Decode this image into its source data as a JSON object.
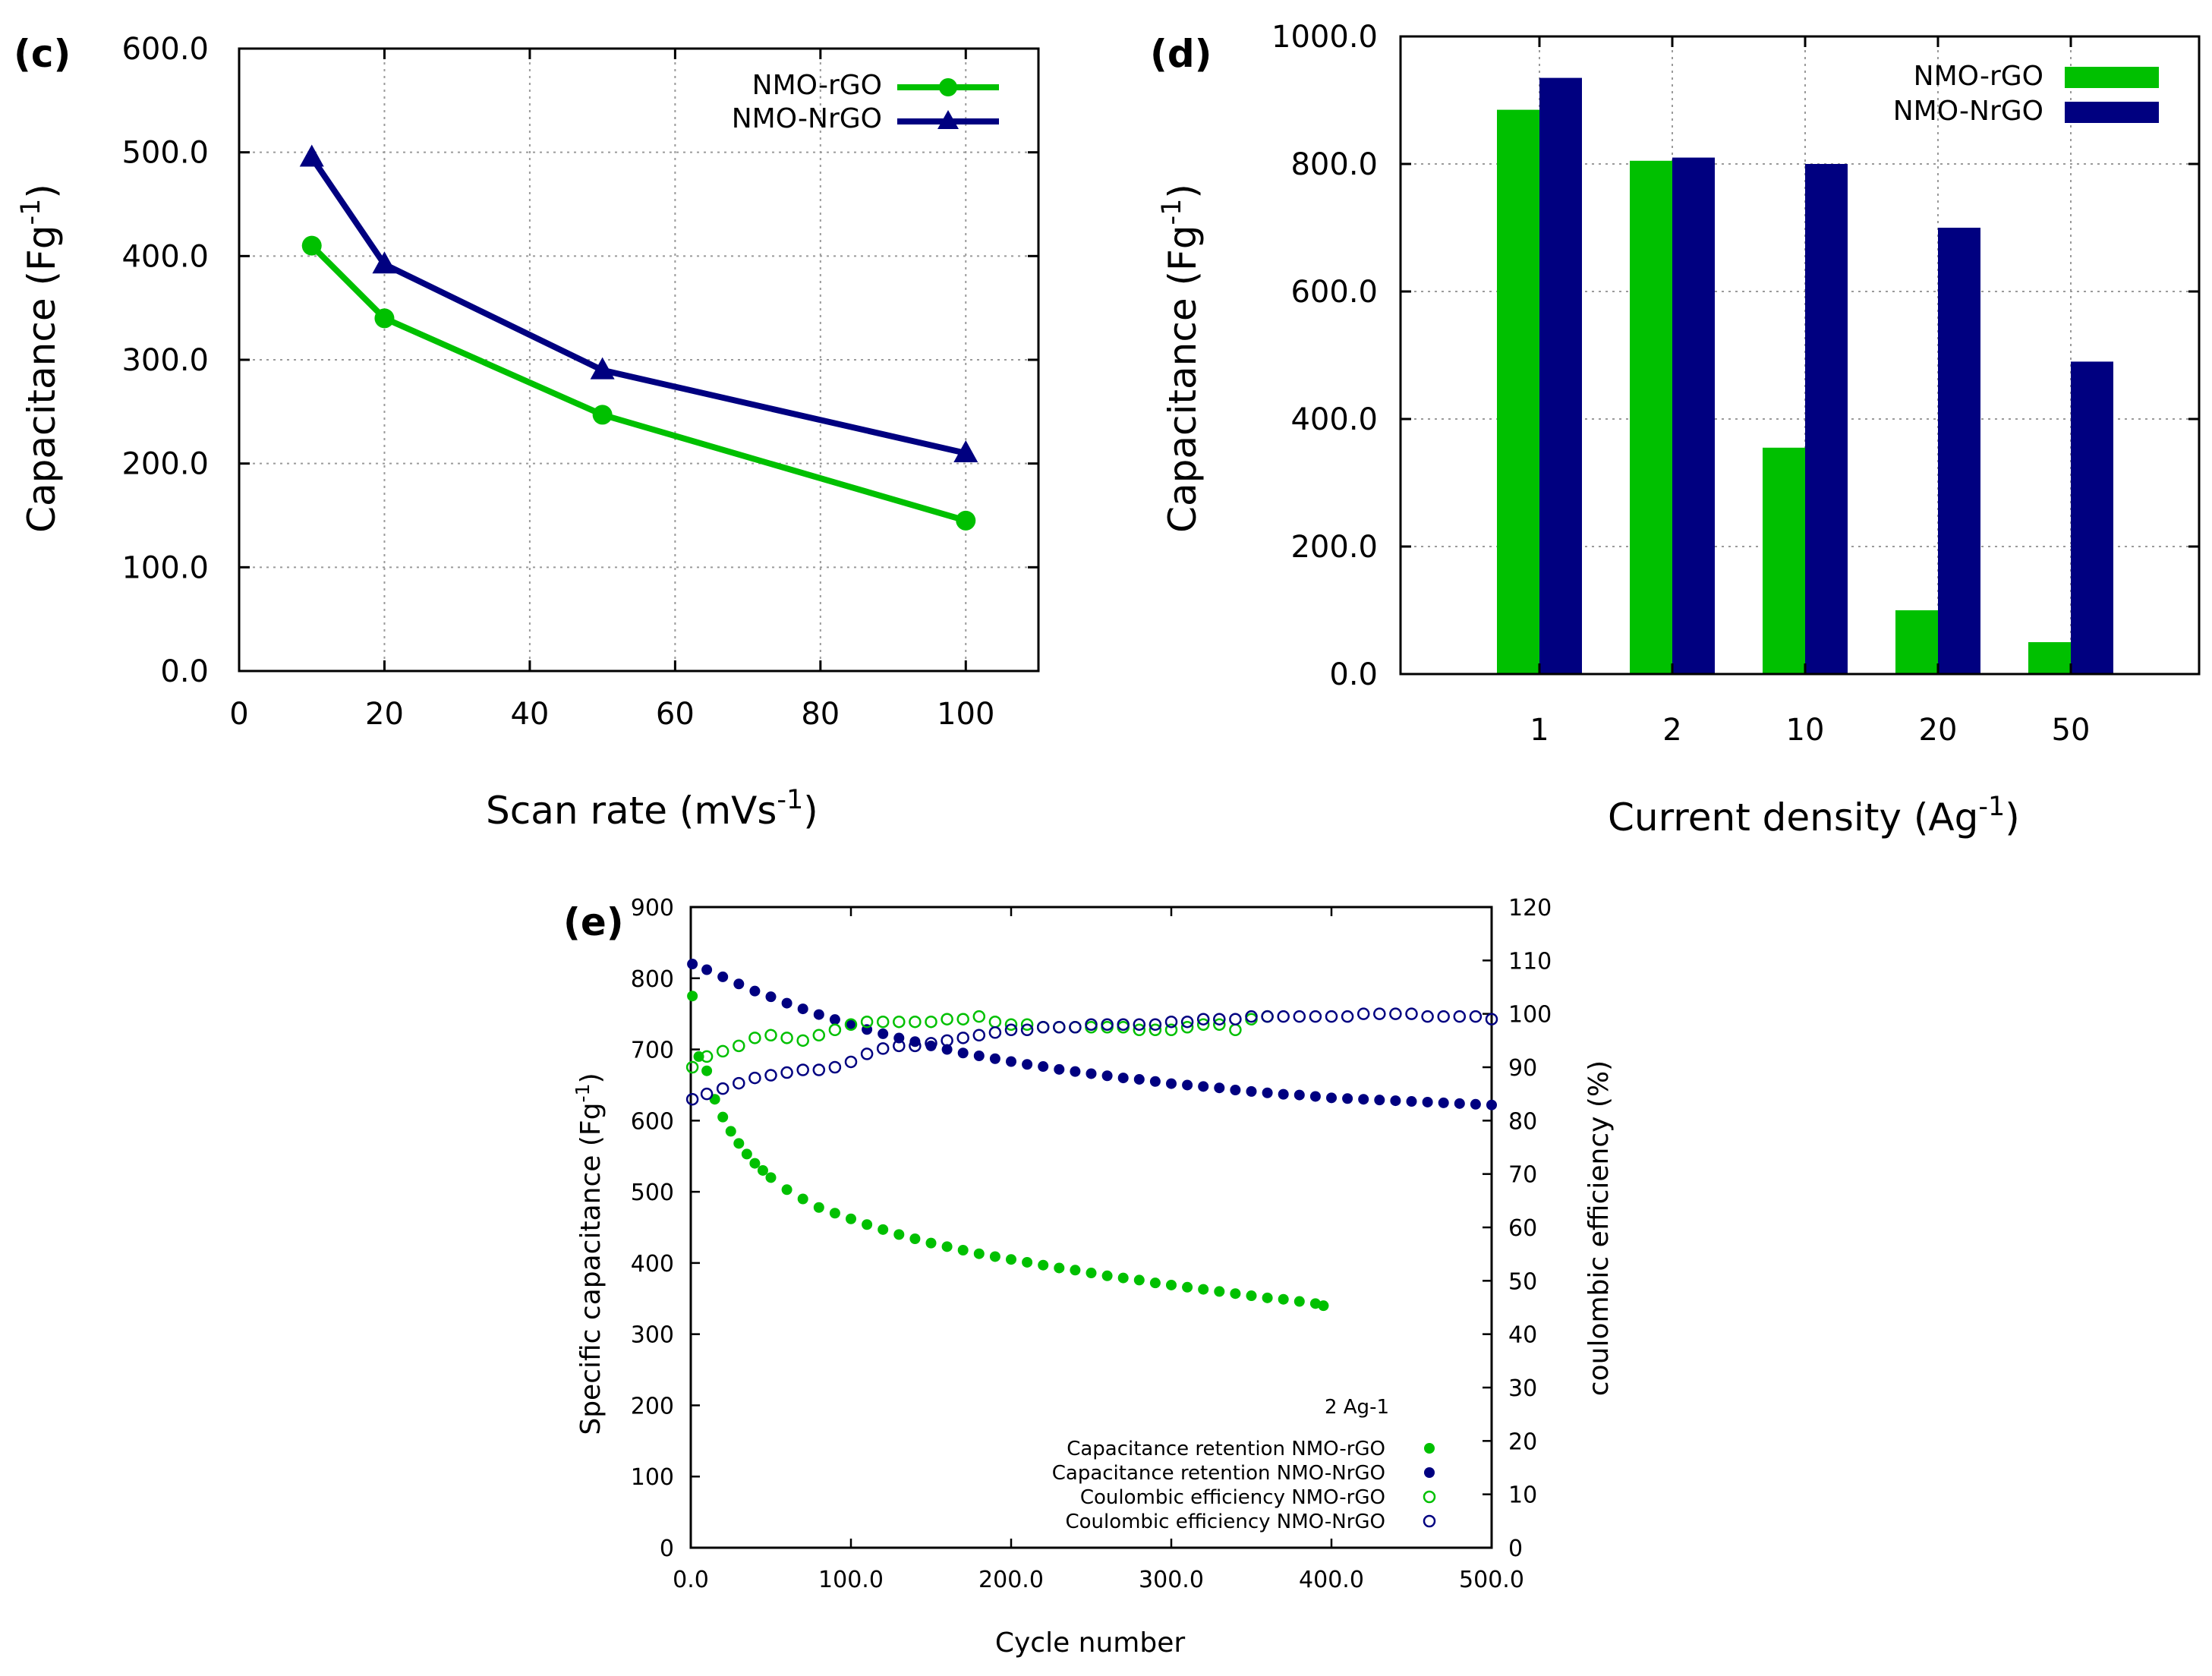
{
  "chart_data": [
    {
      "panel": "(c)",
      "type": "line",
      "xlabel": "Scan rate (mVs-1)",
      "ylabel": "Capacitance (Fg-1)",
      "xlim": [
        0,
        110
      ],
      "ylim": [
        0,
        600
      ],
      "x_ticks": [
        0,
        20,
        40,
        60,
        80,
        100
      ],
      "x_tick_labels": [
        "0",
        "20",
        "40",
        "60",
        "80",
        "100"
      ],
      "y_ticks": [
        0,
        100,
        200,
        300,
        400,
        500,
        600
      ],
      "y_tick_labels": [
        "0.0",
        "100.0",
        "200.0",
        "300.0",
        "400.0",
        "500.0",
        "600.0"
      ],
      "grid": true,
      "legend_position": "top-right",
      "series": [
        {
          "name": "NMO-rGO",
          "color": "#00c000",
          "marker": "circle",
          "x": [
            10,
            20,
            50,
            100
          ],
          "y": [
            410,
            340,
            247,
            145
          ]
        },
        {
          "name": "NMO-NrGO",
          "color": "#000080",
          "marker": "triangle",
          "x": [
            10,
            20,
            50,
            100
          ],
          "y": [
            495,
            392,
            290,
            210
          ]
        }
      ]
    },
    {
      "panel": "(d)",
      "type": "bar",
      "xlabel": "Current density (Ag-1)",
      "ylabel": "Capacitance (Fg-1)",
      "categories": [
        "1",
        "2",
        "10",
        "20",
        "50"
      ],
      "ylim": [
        0,
        1000
      ],
      "y_ticks": [
        0,
        200,
        400,
        600,
        800,
        1000
      ],
      "y_tick_labels": [
        "0.0",
        "200.0",
        "400.0",
        "600.0",
        "800.0",
        "1000.0"
      ],
      "grid": true,
      "legend_position": "top-right",
      "series": [
        {
          "name": "NMO-rGO",
          "color": "#00c000",
          "values": [
            885,
            805,
            355,
            100,
            50
          ]
        },
        {
          "name": "NMO-NrGO",
          "color": "#000080",
          "values": [
            935,
            810,
            800,
            700,
            490
          ]
        }
      ]
    },
    {
      "panel": "(e)",
      "type": "scatter",
      "xlabel": "Cycle number",
      "ylabel": "Specific capacitance (Fg-1)",
      "y2label": "coulombic efficiency (%)",
      "annotation": "2 Ag-1",
      "xlim": [
        0,
        500
      ],
      "ylim": [
        0,
        900
      ],
      "y2lim": [
        0,
        120
      ],
      "x_ticks": [
        0,
        100,
        200,
        300,
        400,
        500
      ],
      "x_tick_labels": [
        "0.0",
        "100.0",
        "200.0",
        "300.0",
        "400.0",
        "500.0"
      ],
      "y_ticks": [
        0,
        100,
        200,
        300,
        400,
        500,
        600,
        700,
        800,
        900
      ],
      "y_tick_labels": [
        "0",
        "100",
        "200",
        "300",
        "400",
        "500",
        "600",
        "700",
        "800",
        "900"
      ],
      "y2_ticks": [
        0,
        10,
        20,
        30,
        40,
        50,
        60,
        70,
        80,
        90,
        100,
        110,
        120
      ],
      "y2_tick_labels": [
        "0",
        "10",
        "20",
        "30",
        "40",
        "50",
        "60",
        "70",
        "80",
        "90",
        "100",
        "110",
        "120"
      ],
      "grid": false,
      "legend_position": "bottom-right",
      "series": [
        {
          "name": "Capacitance retention NMO-rGO",
          "axis": "left",
          "color": "#00c000",
          "filled": true,
          "x": [
            1,
            5,
            10,
            15,
            20,
            25,
            30,
            35,
            40,
            45,
            50,
            60,
            70,
            80,
            90,
            100,
            110,
            120,
            130,
            140,
            150,
            160,
            170,
            180,
            190,
            200,
            210,
            220,
            230,
            240,
            250,
            260,
            270,
            280,
            290,
            300,
            310,
            320,
            330,
            340,
            350,
            360,
            370,
            380,
            390,
            395
          ],
          "y": [
            775,
            690,
            670,
            630,
            605,
            585,
            568,
            553,
            540,
            530,
            520,
            503,
            490,
            478,
            470,
            462,
            454,
            447,
            440,
            434,
            428,
            423,
            418,
            413,
            409,
            405,
            401,
            397,
            393,
            390,
            386,
            382,
            379,
            376,
            372,
            369,
            366,
            363,
            360,
            357,
            354,
            351,
            349,
            346,
            343,
            340
          ]
        },
        {
          "name": "Capacitance retention NMO-NrGO",
          "axis": "left",
          "color": "#000080",
          "filled": true,
          "x": [
            1,
            10,
            20,
            30,
            40,
            50,
            60,
            70,
            80,
            90,
            100,
            110,
            120,
            130,
            140,
            150,
            160,
            170,
            180,
            190,
            200,
            210,
            220,
            230,
            240,
            250,
            260,
            270,
            280,
            290,
            300,
            310,
            320,
            330,
            340,
            350,
            360,
            370,
            380,
            390,
            400,
            410,
            420,
            430,
            440,
            450,
            460,
            470,
            480,
            490,
            500
          ],
          "y": [
            820,
            812,
            802,
            792,
            782,
            774,
            765,
            757,
            749,
            742,
            735,
            728,
            722,
            716,
            711,
            705,
            700,
            695,
            691,
            687,
            683,
            679,
            676,
            672,
            669,
            666,
            663,
            660,
            658,
            655,
            652,
            650,
            648,
            646,
            643,
            641,
            639,
            637,
            636,
            634,
            632,
            631,
            630,
            629,
            628,
            627,
            626,
            625,
            624,
            623,
            622
          ]
        },
        {
          "name": "Coulombic efficiency NMO-rGO",
          "axis": "right",
          "color": "#00c000",
          "filled": false,
          "x": [
            1,
            10,
            20,
            30,
            40,
            50,
            60,
            70,
            80,
            90,
            100,
            110,
            120,
            130,
            140,
            150,
            160,
            170,
            180,
            190,
            200,
            210,
            220,
            230,
            240,
            250,
            260,
            270,
            280,
            290,
            300,
            310,
            320,
            330,
            340,
            350,
            360
          ],
          "y": [
            90,
            92,
            93,
            94,
            95.5,
            96,
            95.5,
            95,
            96,
            97,
            98,
            98.5,
            98.5,
            98.5,
            98.5,
            98.5,
            99,
            99,
            99.5,
            98.5,
            98,
            98,
            97.5,
            97.5,
            97.5,
            97.5,
            97.5,
            97.5,
            97,
            97,
            97,
            97.5,
            98,
            98,
            97,
            99,
            99.5
          ]
        },
        {
          "name": "Coulombic efficiency NMO-NrGO",
          "axis": "right",
          "color": "#000080",
          "filled": false,
          "x": [
            1,
            10,
            20,
            30,
            40,
            50,
            60,
            70,
            80,
            90,
            100,
            110,
            120,
            130,
            140,
            150,
            160,
            170,
            180,
            190,
            200,
            210,
            220,
            230,
            240,
            250,
            260,
            270,
            280,
            290,
            300,
            310,
            320,
            330,
            340,
            350,
            360,
            370,
            380,
            390,
            400,
            410,
            420,
            430,
            440,
            450,
            460,
            470,
            480,
            490,
            500
          ],
          "y": [
            84,
            85,
            86,
            87,
            88,
            88.5,
            89,
            89.5,
            89.5,
            90,
            91,
            92.5,
            93.5,
            94,
            94,
            94.5,
            95,
            95.5,
            96,
            96.5,
            97,
            97,
            97.5,
            97.5,
            97.5,
            98,
            98,
            98,
            98,
            98,
            98.5,
            98.5,
            99,
            99,
            99,
            99.5,
            99.5,
            99.5,
            99.5,
            99.5,
            99.5,
            99.5,
            100,
            100,
            100,
            100,
            99.5,
            99.5,
            99.5,
            99.5,
            99
          ]
        }
      ]
    }
  ]
}
